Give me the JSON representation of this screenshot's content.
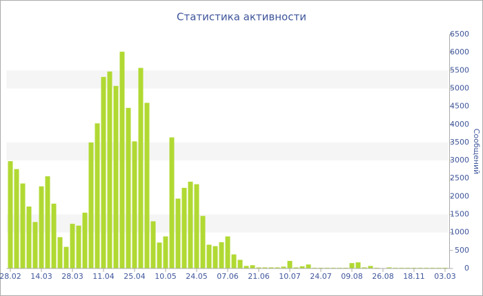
{
  "chart_data": {
    "type": "bar",
    "title": "Статистика активности",
    "y_axis_label": "Сообщений",
    "categories": [
      "28.02",
      null,
      null,
      null,
      null,
      "14.03",
      null,
      null,
      null,
      null,
      "28.03",
      null,
      null,
      null,
      null,
      "11.04",
      null,
      null,
      null,
      null,
      "25.04",
      null,
      null,
      null,
      null,
      "10.05",
      null,
      null,
      null,
      null,
      "24.05",
      null,
      null,
      null,
      null,
      "07.06",
      null,
      null,
      null,
      null,
      "21.06",
      null,
      null,
      null,
      null,
      "10.07",
      null,
      null,
      null,
      null,
      "24.07",
      null,
      null,
      null,
      null,
      "09.08",
      null,
      null,
      null,
      null,
      "26.08",
      null,
      null,
      null,
      null,
      "18.11",
      null,
      null,
      null,
      null,
      "03.03"
    ],
    "values": [
      2980,
      2760,
      2360,
      1720,
      1290,
      2280,
      2560,
      1800,
      870,
      600,
      1240,
      1190,
      1550,
      3500,
      4030,
      5320,
      5470,
      5070,
      6020,
      4460,
      3530,
      5570,
      4600,
      1310,
      720,
      890,
      3640,
      1940,
      2240,
      2410,
      2340,
      1460,
      660,
      620,
      730,
      890,
      390,
      240,
      70,
      90,
      30,
      30,
      30,
      30,
      50,
      210,
      30,
      60,
      110,
      20,
      20,
      20,
      20,
      20,
      20,
      150,
      170,
      30,
      70,
      20,
      10,
      30,
      20,
      20,
      20,
      20,
      20,
      20,
      20,
      20,
      20
    ],
    "color": "#b1d933",
    "ylim": [
      0,
      6500
    ],
    "yticks": [
      0,
      500,
      1000,
      1500,
      2000,
      2500,
      3000,
      3500,
      4000,
      4500,
      5000,
      5500,
      6000,
      6500
    ],
    "grid": true
  }
}
